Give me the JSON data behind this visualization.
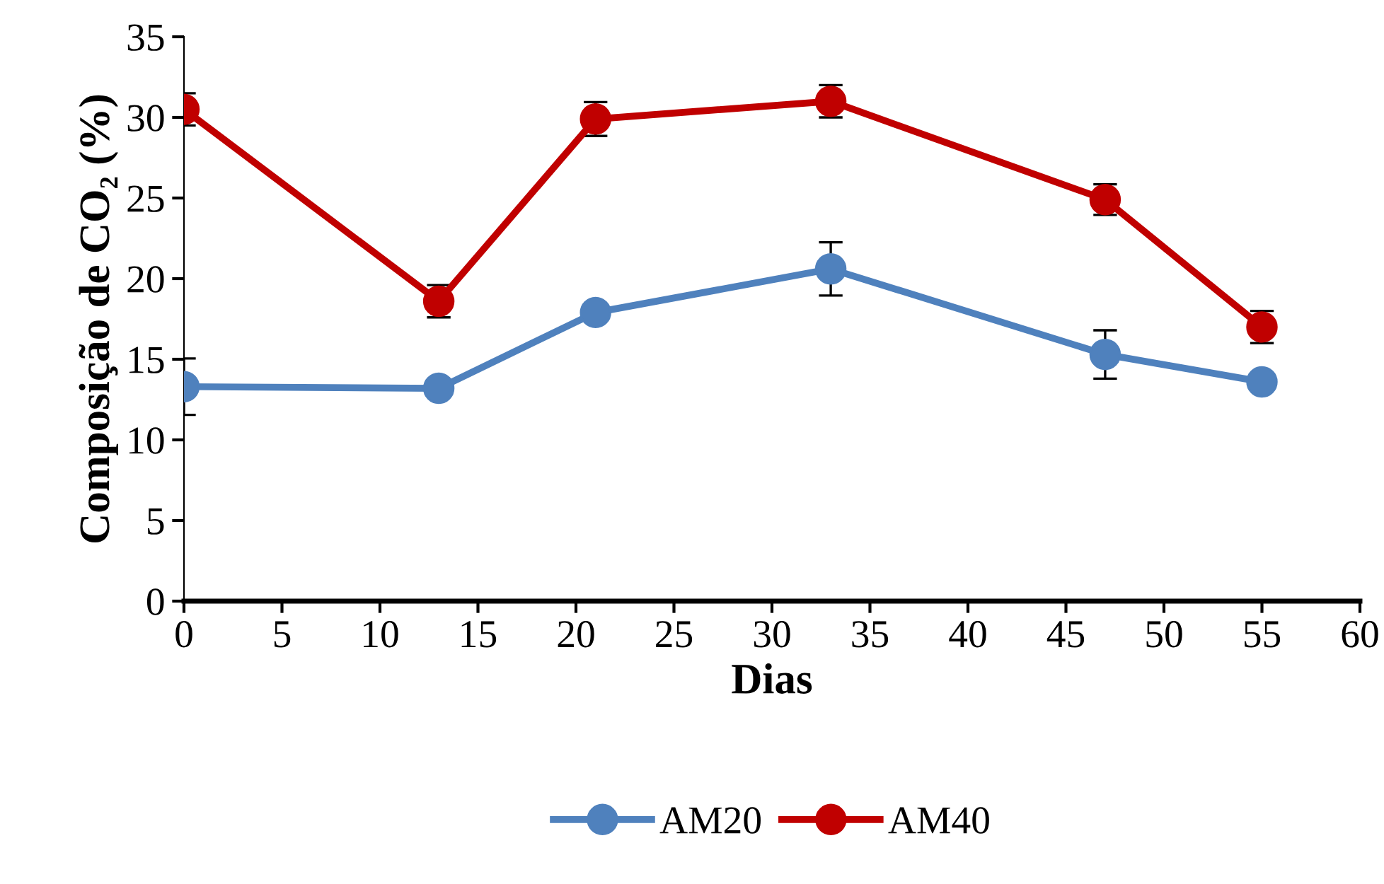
{
  "chart_data": {
    "type": "line",
    "xlabel": "Dias",
    "ylabel": "Composição de CO₂ (%)",
    "x": [
      0,
      13,
      21,
      33,
      47,
      55
    ],
    "series": [
      {
        "name": "AM20",
        "color": "#4f81bd",
        "values": [
          13.3,
          13.2,
          17.9,
          20.6,
          15.3,
          13.6
        ],
        "errors": [
          1.75,
          null,
          null,
          1.65,
          1.5,
          null
        ]
      },
      {
        "name": "AM40",
        "color": "#c00000",
        "values": [
          30.5,
          18.6,
          29.9,
          31.0,
          24.9,
          17.0
        ],
        "errors": [
          1.0,
          1.0,
          1.05,
          1.0,
          0.95,
          1.0
        ]
      }
    ],
    "xlim": [
      0,
      60
    ],
    "xticks": [
      0,
      5,
      10,
      15,
      20,
      25,
      30,
      35,
      40,
      45,
      50,
      55,
      60
    ],
    "ylim": [
      0,
      35
    ],
    "yticks": [
      0,
      5,
      10,
      15,
      20,
      25,
      30,
      35
    ],
    "grid": false,
    "legend": "bottom",
    "marker": "circle",
    "line_style": "solid"
  }
}
